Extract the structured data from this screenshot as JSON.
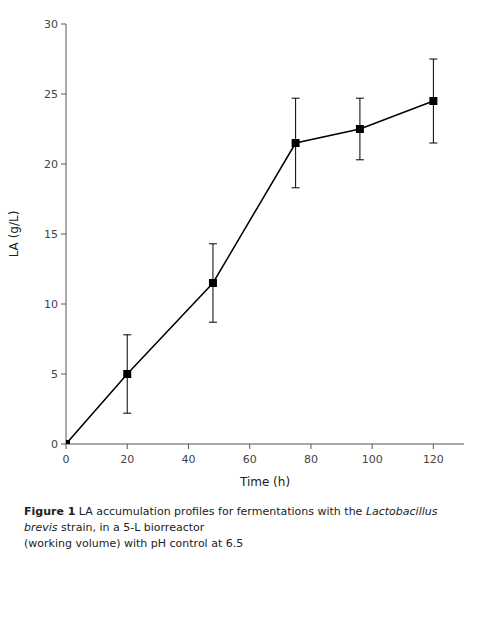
{
  "chart_data": {
    "type": "line",
    "x": [
      0,
      20,
      48,
      75,
      96,
      120
    ],
    "series": [
      {
        "values": [
          0,
          5.0,
          11.5,
          21.5,
          22.5,
          24.5
        ],
        "errors": [
          0,
          2.8,
          2.8,
          3.2,
          2.2,
          3.0
        ],
        "color": "#000000",
        "marker": "square",
        "line_style": "solid"
      }
    ],
    "xlim": [
      0,
      130
    ],
    "ylim": [
      0,
      30
    ],
    "xticks": [
      0,
      20,
      40,
      60,
      80,
      100,
      120
    ],
    "yticks": [
      0,
      5,
      10,
      15,
      20,
      25,
      30
    ],
    "xlabel": "Time (h)",
    "ylabel": "LA (g/L)",
    "grid": false,
    "annotations": [
      [
        {
          "text": "Figure 1",
          "style": "bold"
        },
        {
          "text": " LA accumulation profiles for fermentations with the ",
          "style": "normal"
        },
        {
          "text": "Lactobacillus brevis",
          "style": "italic"
        },
        {
          "text": " strain, in a 5-L biorreactor",
          "style": "normal"
        }
      ],
      [
        {
          "text": "(working volume) with pH control at 6.5",
          "style": "normal"
        }
      ]
    ]
  }
}
